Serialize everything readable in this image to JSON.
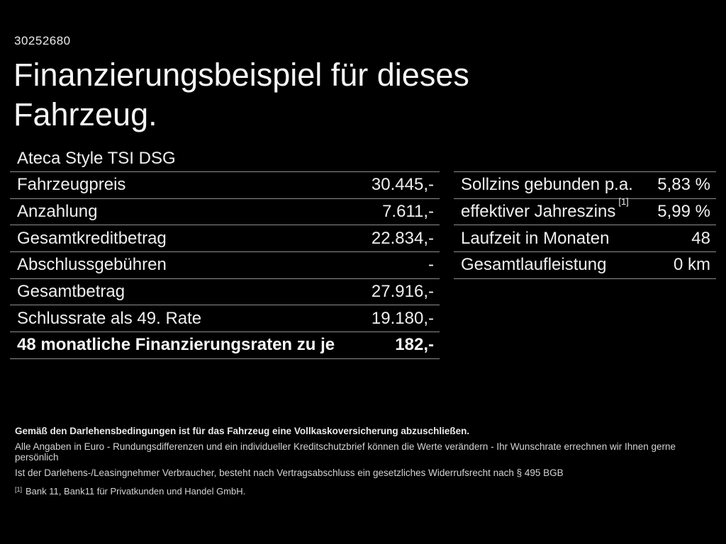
{
  "page": {
    "id_number": "30252680",
    "title_line1": "Finanzierungsbeispiel für dieses",
    "title_line2": "Fahrzeug.",
    "subtitle": "Ateca Style TSI DSG"
  },
  "left_table": {
    "rows": [
      {
        "label": "Fahrzeugpreis",
        "value": "30.445,-",
        "bold": false
      },
      {
        "label": "Anzahlung",
        "value": "7.611,-",
        "bold": false
      },
      {
        "label": "Gesamtkreditbetrag",
        "value": "22.834,-",
        "bold": false
      },
      {
        "label": "Abschlussgebühren",
        "value": "-",
        "bold": false
      },
      {
        "label": "Gesamtbetrag",
        "value": "27.916,-",
        "bold": false
      },
      {
        "label": "Schlussrate als 49. Rate",
        "value": "19.180,-",
        "bold": false
      },
      {
        "label": "48 monatliche Finanzierungsraten zu je",
        "value": "182,-",
        "bold": true
      }
    ]
  },
  "right_table": {
    "rows": [
      {
        "label": "Sollzins gebunden p.a.",
        "value": "5,83 %"
      },
      {
        "label": "effektiver Jahreszins",
        "label_sup": "[1]",
        "value": "5,99 %"
      },
      {
        "label": "Laufzeit in Monaten",
        "value": "48"
      },
      {
        "label": "Gesamtlaufleistung",
        "value": "0 km"
      }
    ]
  },
  "footer": {
    "line1": "Gemäß den Darlehensbedingungen ist für das Fahrzeug eine Vollkaskoversicherung abzuschließen.",
    "line2": "Alle Angaben in Euro - Rundungsdifferenzen und ein individueller Kreditschutzbrief können die Werte verändern - Ihr Wunschrate errechnen wir Ihnen gerne persönlich",
    "line3": "Ist der Darlehens-/Leasingnehmer Verbraucher, besteht nach Vertragsabschluss ein gesetzliches Widerrufsrecht nach § 495 BGB",
    "footnote_marker": "[1]",
    "footnote_text": "Bank 11, Bank11 für Privatkunden und Handel GmbH."
  },
  "colors": {
    "background": "#000000",
    "text": "#f2f2f2",
    "divider": "#8e8e8e"
  }
}
